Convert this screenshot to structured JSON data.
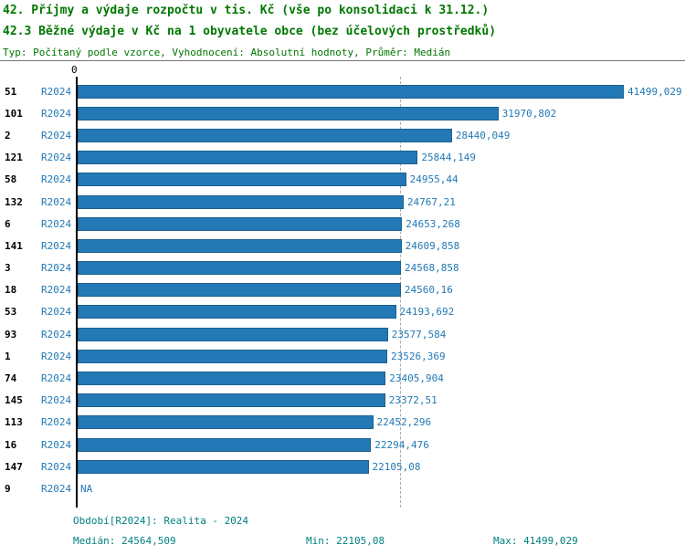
{
  "header": {
    "title1": "42. Příjmy a výdaje rozpočtu v tis. Kč (vše po konsolidaci k 31.12.)",
    "title2": "42.3 Běžné výdaje v Kč na 1 obyvatele obce (bez účelových prostředků)",
    "meta": "Typ: Počítaný podle vzorce, Vyhodnocení: Absolutní hodnoty, Průměr: Medián"
  },
  "chart_data": {
    "type": "bar",
    "orientation": "horizontal",
    "axis_origin_label": "0",
    "axis_max": 41499.029,
    "median_value": 24564.509,
    "series_period": "R2024",
    "colors": {
      "bar": "#2379b5",
      "title_green": "#007700",
      "footer_teal": "#008080"
    },
    "rows": [
      {
        "rank": "51",
        "period": "R2024",
        "value": 41499.029,
        "label": "41499,029"
      },
      {
        "rank": "101",
        "period": "R2024",
        "value": 31970.802,
        "label": "31970,802"
      },
      {
        "rank": "2",
        "period": "R2024",
        "value": 28440.049,
        "label": "28440,049"
      },
      {
        "rank": "121",
        "period": "R2024",
        "value": 25844.149,
        "label": "25844,149"
      },
      {
        "rank": "58",
        "period": "R2024",
        "value": 24955.44,
        "label": "24955,44"
      },
      {
        "rank": "132",
        "period": "R2024",
        "value": 24767.21,
        "label": "24767,21"
      },
      {
        "rank": "6",
        "period": "R2024",
        "value": 24653.268,
        "label": "24653,268"
      },
      {
        "rank": "141",
        "period": "R2024",
        "value": 24609.858,
        "label": "24609,858"
      },
      {
        "rank": "3",
        "period": "R2024",
        "value": 24568.858,
        "label": "24568,858"
      },
      {
        "rank": "18",
        "period": "R2024",
        "value": 24560.16,
        "label": "24560,16"
      },
      {
        "rank": "53",
        "period": "R2024",
        "value": 24193.692,
        "label": "24193,692"
      },
      {
        "rank": "93",
        "period": "R2024",
        "value": 23577.584,
        "label": "23577,584"
      },
      {
        "rank": "1",
        "period": "R2024",
        "value": 23526.369,
        "label": "23526,369"
      },
      {
        "rank": "74",
        "period": "R2024",
        "value": 23405.904,
        "label": "23405,904"
      },
      {
        "rank": "145",
        "period": "R2024",
        "value": 23372.51,
        "label": "23372,51"
      },
      {
        "rank": "113",
        "period": "R2024",
        "value": 22452.296,
        "label": "22452,296"
      },
      {
        "rank": "16",
        "period": "R2024",
        "value": 22294.476,
        "label": "22294,476"
      },
      {
        "rank": "147",
        "period": "R2024",
        "value": 22105.08,
        "label": "22105,08"
      },
      {
        "rank": "9",
        "period": "R2024",
        "value": null,
        "label": "NA"
      }
    ]
  },
  "footer": {
    "period_line": "Období[R2024]: Realita - 2024",
    "median": "Medián: 24564,509",
    "min": "Min: 22105,08",
    "max": "Max: 41499,029"
  }
}
